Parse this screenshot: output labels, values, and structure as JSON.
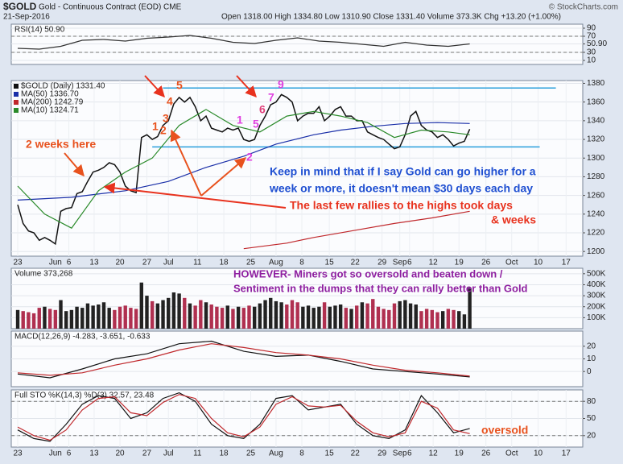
{
  "header": {
    "symbol": "$GOLD",
    "description": "Gold - Continuous Contract (EOD) CME",
    "date": "21-Sep-2016",
    "quote": "Open 1318.00 High 1334.80 Low 1310.90 Close 1331.40 Volume 373.3K Chg +13.20 (+1.00%)",
    "source": "© StockCharts.com"
  },
  "chart_data": [
    {
      "type": "line",
      "title": "RSI(14) 50.90",
      "xlim": [
        -1.2,
        105
      ],
      "ylim": [
        0,
        100
      ],
      "yticks": [
        10,
        30,
        {
          "value": 50.9,
          "label": "50.90"
        },
        70,
        90
      ],
      "levels": [
        30,
        70
      ],
      "series": [
        {
          "color": "#333333",
          "x": [
            0,
            4,
            8,
            12,
            16,
            20,
            24,
            28,
            32,
            36,
            40,
            44,
            48,
            52,
            56,
            60,
            64,
            68,
            72,
            76,
            80,
            84
          ],
          "values": [
            40,
            38,
            45,
            60,
            62,
            58,
            65,
            68,
            72,
            65,
            55,
            52,
            60,
            66,
            58,
            55,
            50,
            45,
            55,
            48,
            45,
            51
          ]
        }
      ]
    },
    {
      "type": "line",
      "xlim": [
        -1.2,
        105
      ],
      "ylim": [
        1195,
        1383
      ],
      "yticks": [
        1200,
        1220,
        1240,
        1260,
        1280,
        1300,
        1320,
        1340,
        1360,
        1380
      ],
      "x": [
        0,
        1,
        2,
        3,
        4,
        5,
        6,
        7,
        8,
        9,
        10,
        11,
        12,
        13,
        14,
        15,
        16,
        17,
        18,
        19,
        20,
        21,
        22,
        23,
        24,
        25,
        26,
        27,
        28,
        29,
        30,
        31,
        32,
        33,
        34,
        35,
        36,
        37,
        38,
        39,
        40,
        41,
        42,
        43,
        44,
        45,
        46,
        47,
        48,
        49,
        50,
        51,
        52,
        53,
        54,
        55,
        56,
        57,
        58,
        59,
        60,
        61,
        62,
        63,
        64,
        65,
        66,
        67,
        68,
        69,
        70,
        71,
        72,
        73,
        74,
        75,
        76,
        77,
        78,
        79,
        80,
        81,
        82,
        83,
        84
      ],
      "xticks": [
        {
          "value": 0,
          "label": "23"
        },
        {
          "value": 7,
          "label": "Jun"
        },
        {
          "value": 9.5,
          "label": "6"
        },
        {
          "value": 14.2,
          "label": "13"
        },
        {
          "value": 19,
          "label": "20"
        },
        {
          "value": 24,
          "label": "27"
        },
        {
          "value": 28,
          "label": "Jul"
        },
        {
          "value": 33.4,
          "label": "11"
        },
        {
          "value": 38.3,
          "label": "18"
        },
        {
          "value": 43.3,
          "label": "25"
        },
        {
          "value": 48,
          "label": "Aug"
        },
        {
          "value": 52.8,
          "label": "8"
        },
        {
          "value": 57.9,
          "label": "15"
        },
        {
          "value": 62.7,
          "label": "22"
        },
        {
          "value": 67.7,
          "label": "29"
        },
        {
          "value": 71,
          "label": "Sep"
        },
        {
          "value": 72.8,
          "label": "6"
        },
        {
          "value": 77.2,
          "label": "12"
        },
        {
          "value": 82,
          "label": "19"
        },
        {
          "value": 87,
          "label": "26"
        },
        {
          "value": 91.8,
          "label": "Oct"
        },
        {
          "value": 96.7,
          "label": "10"
        },
        {
          "value": 101.9,
          "label": "17"
        }
      ],
      "series": [
        {
          "name": "$GOLD (Daily) 1331.40",
          "color": "#111111",
          "values": [
            1250,
            1230,
            1222,
            1220,
            1212,
            1215,
            1212,
            1208,
            1243,
            1246,
            1247,
            1262,
            1264,
            1275,
            1285,
            1287,
            1290,
            1295,
            1293,
            1285,
            1270,
            1265,
            1263,
            1322,
            1325,
            1320,
            1323,
            1335,
            1340,
            1358,
            1365,
            1360,
            1365,
            1355,
            1340,
            1345,
            1332,
            1330,
            1328,
            1332,
            1330,
            1332,
            1320,
            1318,
            1320,
            1335,
            1345,
            1357,
            1360,
            1368,
            1365,
            1360,
            1340,
            1345,
            1348,
            1348,
            1355,
            1340,
            1345,
            1352,
            1355,
            1345,
            1345,
            1340,
            1340,
            1328,
            1325,
            1322,
            1320,
            1315,
            1310,
            1312,
            1325,
            1345,
            1350,
            1335,
            1330,
            1328,
            1322,
            1325,
            1320,
            1313,
            1316,
            1318,
            1331
          ]
        },
        {
          "name": "MA(50) 1336.70",
          "color": "#1a2fa8",
          "x": [
            0,
            10,
            20,
            28,
            35,
            42,
            48,
            55,
            60,
            66,
            72,
            78,
            84
          ],
          "values": [
            1255,
            1258,
            1265,
            1275,
            1290,
            1302,
            1315,
            1325,
            1330,
            1334,
            1337,
            1338,
            1337
          ]
        },
        {
          "name": "MA(200) 1242.79",
          "color": "#c0282c",
          "x": [
            42,
            50,
            55,
            62,
            70,
            77,
            84
          ],
          "values": [
            1203,
            1209,
            1215,
            1222,
            1230,
            1236,
            1243
          ]
        },
        {
          "name": "MA(10) 1324.71",
          "color": "#2a8a2a",
          "x": [
            0,
            5,
            10,
            15,
            20,
            25,
            30,
            35,
            40,
            45,
            50,
            55,
            60,
            65,
            70,
            75,
            80,
            84
          ],
          "values": [
            1270,
            1240,
            1225,
            1265,
            1285,
            1300,
            1335,
            1352,
            1335,
            1328,
            1345,
            1350,
            1345,
            1338,
            1322,
            1330,
            1328,
            1325
          ]
        }
      ],
      "hlines": [
        {
          "value": 1375,
          "x": [
            27,
            100
          ]
        },
        {
          "value": 1312,
          "x": [
            25,
            97
          ]
        }
      ],
      "hline_color": "#2a9fdc",
      "annotations": [
        {
          "text": "2 weeks here",
          "color": "#e8521e"
        },
        {
          "text": "Keep in mind that if I say Gold can go higher for a",
          "color": "#1f4fd1"
        },
        {
          "text": "week or more, it doesn't mean $30 days each day",
          "color": "#1f4fd1"
        },
        {
          "text": "The last few rallies to the highs took days",
          "color": "#e8321e"
        },
        {
          "text": "& weeks",
          "color": "#e8321e"
        },
        {
          "text": "1",
          "color": "#e8521e"
        },
        {
          "text": "2",
          "color": "#e8521e"
        },
        {
          "text": "3",
          "color": "#e8521e"
        },
        {
          "text": "4",
          "color": "#e8521e"
        },
        {
          "text": "5",
          "color": "#e8521e"
        },
        {
          "text": "1",
          "color": "#e040e0"
        },
        {
          "text": "2",
          "color": "#e040e0"
        },
        {
          "text": "5",
          "color": "#e040e0"
        },
        {
          "text": "6",
          "color": "#e0407a"
        },
        {
          "text": "7",
          "color": "#e040e0"
        },
        {
          "text": "9",
          "color": "#e040e0"
        }
      ]
    },
    {
      "type": "bar",
      "title": "Volume 373,268",
      "xlim": [
        -1.2,
        105
      ],
      "ylim": [
        0,
        550000
      ],
      "up_color": "#222222",
      "down_color": "#b03050",
      "yticks": [
        {
          "value": 100000,
          "label": "100K"
        },
        {
          "value": 200000,
          "label": "200K"
        },
        {
          "value": 300000,
          "label": "300K"
        },
        {
          "value": 400000,
          "label": "400K"
        },
        {
          "value": 500000,
          "label": "500K"
        }
      ],
      "values": [
        170000,
        160000,
        150000,
        140000,
        190000,
        200000,
        180000,
        170000,
        260000,
        160000,
        170000,
        200000,
        190000,
        230000,
        210000,
        220000,
        240000,
        190000,
        170000,
        200000,
        210000,
        190000,
        180000,
        420000,
        300000,
        250000,
        230000,
        260000,
        280000,
        330000,
        320000,
        280000,
        230000,
        210000,
        260000,
        240000,
        220000,
        200000,
        190000,
        210000,
        180000,
        200000,
        190000,
        210000,
        200000,
        230000,
        260000,
        280000,
        250000,
        240000,
        220000,
        260000,
        240000,
        200000,
        210000,
        190000,
        200000,
        240000,
        200000,
        210000,
        220000,
        190000,
        180000,
        210000,
        240000,
        230000,
        270000,
        200000,
        180000,
        170000,
        230000,
        250000,
        260000,
        230000,
        220000,
        160000,
        180000,
        170000,
        150000,
        160000,
        180000,
        170000,
        160000,
        130000,
        373268
      ],
      "annotations": [
        {
          "text": "HOWEVER- Miners got so oversold and beaten down /",
          "color": "#8e1fa0"
        },
        {
          "text": "Sentiment in the dumps that they can rally better than Gold",
          "color": "#8e1fa0"
        }
      ]
    },
    {
      "type": "line",
      "title": "MACD(12,26,9) -4.283, -3.651, -0.633",
      "xlim": [
        -1.2,
        105
      ],
      "ylim": [
        -12,
        32
      ],
      "yticks": [
        0,
        10,
        20
      ],
      "series": [
        {
          "color": "#111111",
          "x": [
            0,
            6,
            12,
            18,
            24,
            30,
            36,
            42,
            48,
            54,
            60,
            66,
            72,
            78,
            84
          ],
          "values": [
            -2,
            -5,
            2,
            10,
            14,
            22,
            24,
            16,
            12,
            13,
            8,
            2,
            0,
            -2,
            -4.283
          ]
        },
        {
          "color": "#c0282c",
          "x": [
            0,
            6,
            12,
            18,
            24,
            30,
            36,
            42,
            48,
            54,
            60,
            66,
            72,
            78,
            84
          ],
          "values": [
            -1,
            -3,
            -1,
            5,
            10,
            17,
            22,
            19,
            15,
            13,
            10,
            5,
            1,
            -1,
            -3.651
          ]
        }
      ]
    },
    {
      "type": "line",
      "title": "Full STO %K(14,3) %D(3) 32.57, 23.48",
      "xlim": [
        -1.2,
        105
      ],
      "ylim": [
        0,
        100
      ],
      "yticks": [
        20,
        50,
        80
      ],
      "levels": [
        20,
        80
      ],
      "xticks": [
        {
          "value": 0,
          "label": "23"
        },
        {
          "value": 7,
          "label": "Jun"
        },
        {
          "value": 9.5,
          "label": "6"
        },
        {
          "value": 14.2,
          "label": "13"
        },
        {
          "value": 19,
          "label": "20"
        },
        {
          "value": 24,
          "label": "27"
        },
        {
          "value": 28,
          "label": "Jul"
        },
        {
          "value": 33.4,
          "label": "11"
        },
        {
          "value": 38.3,
          "label": "18"
        },
        {
          "value": 43.3,
          "label": "25"
        },
        {
          "value": 48,
          "label": "Aug"
        },
        {
          "value": 52.8,
          "label": "8"
        },
        {
          "value": 57.9,
          "label": "15"
        },
        {
          "value": 62.7,
          "label": "22"
        },
        {
          "value": 67.7,
          "label": "29"
        },
        {
          "value": 71,
          "label": "Sep"
        },
        {
          "value": 72.8,
          "label": "6"
        },
        {
          "value": 77.2,
          "label": "12"
        },
        {
          "value": 82,
          "label": "19"
        },
        {
          "value": 87,
          "label": "26"
        },
        {
          "value": 91.8,
          "label": "Oct"
        },
        {
          "value": 96.7,
          "label": "10"
        },
        {
          "value": 101.9,
          "label": "17"
        }
      ],
      "series": [
        {
          "color": "#111111",
          "x": [
            0,
            3,
            6,
            9,
            12,
            15,
            18,
            21,
            24,
            27,
            30,
            33,
            36,
            39,
            42,
            45,
            48,
            51,
            54,
            57,
            60,
            63,
            66,
            69,
            72,
            75,
            78,
            81,
            84
          ],
          "values": [
            30,
            15,
            10,
            40,
            75,
            90,
            85,
            50,
            60,
            85,
            95,
            80,
            40,
            20,
            15,
            40,
            85,
            90,
            65,
            70,
            75,
            40,
            20,
            15,
            30,
            90,
            60,
            25,
            32.57
          ]
        },
        {
          "color": "#c0282c",
          "x": [
            0,
            3,
            6,
            9,
            12,
            15,
            18,
            21,
            24,
            27,
            30,
            33,
            36,
            39,
            42,
            45,
            48,
            51,
            54,
            57,
            60,
            63,
            66,
            69,
            72,
            75,
            78,
            81,
            84
          ],
          "values": [
            35,
            20,
            12,
            30,
            65,
            85,
            88,
            60,
            55,
            78,
            92,
            85,
            50,
            25,
            18,
            35,
            75,
            88,
            72,
            70,
            73,
            45,
            25,
            18,
            25,
            80,
            68,
            30,
            23.48
          ]
        }
      ],
      "annotations": [
        {
          "text": "oversold",
          "color": "#e8521e"
        }
      ]
    }
  ]
}
